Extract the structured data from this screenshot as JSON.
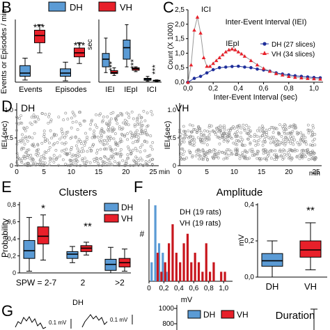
{
  "legend_main": {
    "dh": "DH",
    "vh": "VH",
    "dh_color": "#5b9bd5",
    "vh_color": "#e8202a"
  },
  "chart_data": [
    {
      "panel": "B",
      "type": "box",
      "ylabel": "Events or Episodes / min",
      "categories": [
        "Events",
        "Episodes"
      ],
      "groups": [
        {
          "group": "DH",
          "category": "Events",
          "min": 8,
          "q1": 22,
          "median": 34,
          "q3": 62,
          "max": 90
        },
        {
          "group": "VH",
          "category": "Events",
          "min": 110,
          "q1": 148,
          "median": 175,
          "q3": 195,
          "max": 215
        },
        {
          "group": "DH",
          "category": "Episodes",
          "min": 5,
          "q1": 22,
          "median": 34,
          "q3": 50,
          "max": 75
        },
        {
          "group": "VH",
          "category": "Episodes",
          "min": 70,
          "q1": 95,
          "median": 110,
          "q3": 128,
          "max": 148
        }
      ],
      "annotations": [
        "***",
        "***"
      ]
    },
    {
      "panel": "B2",
      "type": "box",
      "ylabel": "sec",
      "categories": [
        "IEI",
        "IEpI",
        "ICI"
      ],
      "groups": [
        {
          "group": "DH",
          "category": "IEI",
          "min": 0.5,
          "q1": 0.8,
          "median": 1.2,
          "q3": 1.5,
          "max": 2.3
        },
        {
          "group": "VH",
          "category": "IEI",
          "min": 0.35,
          "q1": 0.45,
          "median": 0.5,
          "q3": 0.6,
          "max": 0.75
        },
        {
          "group": "DH",
          "category": "IEpI",
          "min": 0.8,
          "q1": 1.2,
          "median": 1.8,
          "q3": 2.2,
          "max": 3.0
        },
        {
          "group": "VH",
          "category": "IEpI",
          "min": 0.55,
          "q1": 0.62,
          "median": 0.7,
          "q3": 0.75,
          "max": 0.8
        },
        {
          "group": "DH",
          "category": "ICI",
          "min": 0.05,
          "q1": 0.1,
          "median": 0.15,
          "q3": 0.2,
          "max": 0.3
        },
        {
          "group": "VH",
          "category": "ICI",
          "min": 0.04,
          "q1": 0.06,
          "median": 0.08,
          "q3": 0.1,
          "max": 0.12
        }
      ],
      "annotations": [
        "***",
        "***",
        "***"
      ]
    },
    {
      "panel": "C",
      "type": "line",
      "title": "Inter-Event Interval (IEI)",
      "xlabel": "Inter-Event Interval (sec)",
      "ylabel": "Count (X 1000)",
      "xlim": [
        0,
        1.05
      ],
      "ylim": [
        0,
        2.5
      ],
      "xticks": [
        "0,0",
        "0,2",
        "0,4",
        "0,6",
        "0,8",
        "1,0"
      ],
      "yticks": [
        "0,0",
        "0,5",
        "1,0",
        "1,5",
        "2,0",
        "2,5"
      ],
      "annotations": [
        "ICI",
        "IEpI"
      ],
      "series": [
        {
          "name": "DH (27 slices)",
          "x": [
            0.0,
            0.05,
            0.1,
            0.15,
            0.2,
            0.25,
            0.3,
            0.35,
            0.4,
            0.45,
            0.5,
            0.55,
            0.6,
            0.65,
            0.7,
            0.75,
            0.8,
            0.85,
            0.9,
            0.95,
            1.0,
            1.05
          ],
          "y": [
            0.0,
            0.13,
            0.2,
            0.32,
            0.43,
            0.5,
            0.52,
            0.54,
            0.55,
            0.52,
            0.5,
            0.45,
            0.42,
            0.38,
            0.32,
            0.28,
            0.25,
            0.22,
            0.2,
            0.18,
            0.16,
            0.15
          ]
        },
        {
          "name": "VH (34 slices)",
          "x": [
            0.0,
            0.025,
            0.05,
            0.075,
            0.1,
            0.125,
            0.15,
            0.175,
            0.2,
            0.225,
            0.25,
            0.275,
            0.3,
            0.325,
            0.35,
            0.375,
            0.4,
            0.425,
            0.45,
            0.5,
            0.55,
            0.6,
            0.65,
            0.7,
            0.75,
            0.8,
            0.85,
            0.9,
            0.95,
            1.0,
            1.05
          ],
          "y": [
            0.0,
            0.6,
            1.8,
            2.25,
            1.7,
            0.85,
            0.55,
            0.55,
            0.65,
            0.75,
            0.85,
            0.95,
            1.05,
            1.12,
            1.15,
            1.12,
            1.05,
            0.98,
            0.9,
            0.75,
            0.6,
            0.48,
            0.38,
            0.3,
            0.25,
            0.2,
            0.17,
            0.15,
            0.13,
            0.12,
            0.11
          ]
        }
      ]
    },
    {
      "panel": "D",
      "type": "scatter",
      "groups": [
        "DH",
        "VH"
      ],
      "ylabel": "IEI (sec)",
      "xlabel": "min",
      "xlim": [
        0,
        25
      ],
      "ylim": [
        0,
        1.0
      ],
      "xticks": [
        "0",
        "5",
        "10",
        "15",
        "20",
        "25"
      ],
      "yticks": [
        "0",
        "0.5",
        "1.0"
      ]
    },
    {
      "panel": "E",
      "type": "box",
      "title": "Clusters",
      "ylabel": "Probability",
      "categories": [
        "SPW = 2-7",
        "2",
        ">2"
      ],
      "ylim": [
        0,
        0.8
      ],
      "yticks": [
        "0",
        "0,2",
        "0,4",
        "0,6",
        "0,8"
      ],
      "groups": [
        {
          "group": "DH",
          "category": "SPW = 2-7",
          "min": 0.02,
          "q1": 0.17,
          "median": 0.26,
          "q3": 0.38,
          "max": 0.65
        },
        {
          "group": "VH",
          "category": "SPW = 2-7",
          "min": 0.15,
          "q1": 0.34,
          "median": 0.43,
          "q3": 0.54,
          "max": 0.68
        },
        {
          "group": "DH",
          "category": "2",
          "min": 0.12,
          "q1": 0.17,
          "median": 0.22,
          "q3": 0.25,
          "max": 0.31
        },
        {
          "group": "VH",
          "category": "2",
          "min": 0.21,
          "q1": 0.25,
          "median": 0.29,
          "q3": 0.32,
          "max": 0.36
        },
        {
          "group": "DH",
          "category": ">2",
          "min": 0.0,
          "q1": 0.03,
          "median": 0.1,
          "q3": 0.16,
          "max": 0.3
        },
        {
          "group": "VH",
          "category": ">2",
          "min": 0.02,
          "q1": 0.07,
          "median": 0.12,
          "q3": 0.17,
          "max": 0.28
        }
      ],
      "annotations": [
        "*",
        "**"
      ]
    },
    {
      "panel": "F",
      "type": "bar",
      "title": "Amplitude",
      "xlabel": "mV",
      "ylabel": "#",
      "xticks": [
        "0",
        "0,2",
        "0,4",
        "0,6",
        "0,8",
        "1,0"
      ],
      "series": [
        {
          "name": "DH (19 rats)",
          "x": [
            0.05,
            0.1,
            0.15,
            0.2,
            0.25
          ],
          "values": [
            2,
            8,
            4,
            3,
            1
          ]
        },
        {
          "name": "VH (19 rats)",
          "x": [
            0.1,
            0.15,
            0.2,
            0.25,
            0.3,
            0.35,
            0.4,
            0.45,
            0.5,
            0.55,
            0.6,
            0.65,
            0.7,
            0.75,
            0.8,
            0.85,
            0.9,
            0.95,
            1.0
          ],
          "values": [
            3,
            1,
            2,
            4,
            6,
            3,
            2,
            4,
            5,
            2,
            3,
            2,
            1,
            4,
            1,
            2,
            0,
            1,
            1
          ]
        }
      ]
    },
    {
      "panel": "F2",
      "type": "box",
      "ylabel": "mV",
      "categories": [
        "DH",
        "VH"
      ],
      "ylim": [
        0,
        0.4
      ],
      "yticks": [
        "0,0",
        "0,2",
        "0,4"
      ],
      "groups": [
        {
          "group": "DH",
          "category": "DH",
          "min": 0.0,
          "q1": 0.06,
          "median": 0.09,
          "q3": 0.13,
          "max": 0.2
        },
        {
          "group": "VH",
          "category": "VH",
          "min": 0.04,
          "q1": 0.11,
          "median": 0.15,
          "q3": 0.2,
          "max": 0.3
        }
      ],
      "annotations": [
        "**"
      ]
    },
    {
      "panel": "G",
      "type": "line",
      "title": "DH",
      "scale_labels": [
        "0.1 mV",
        "0.1 mV"
      ]
    },
    {
      "panel": "H",
      "type": "box",
      "title": "Duration",
      "yticks": [
        "1000",
        "800"
      ],
      "legend": [
        "DH",
        "VH"
      ]
    }
  ],
  "panel_letters": {
    "b": "B",
    "c": "C",
    "d": "D",
    "e": "E",
    "f": "F",
    "g": "G"
  }
}
